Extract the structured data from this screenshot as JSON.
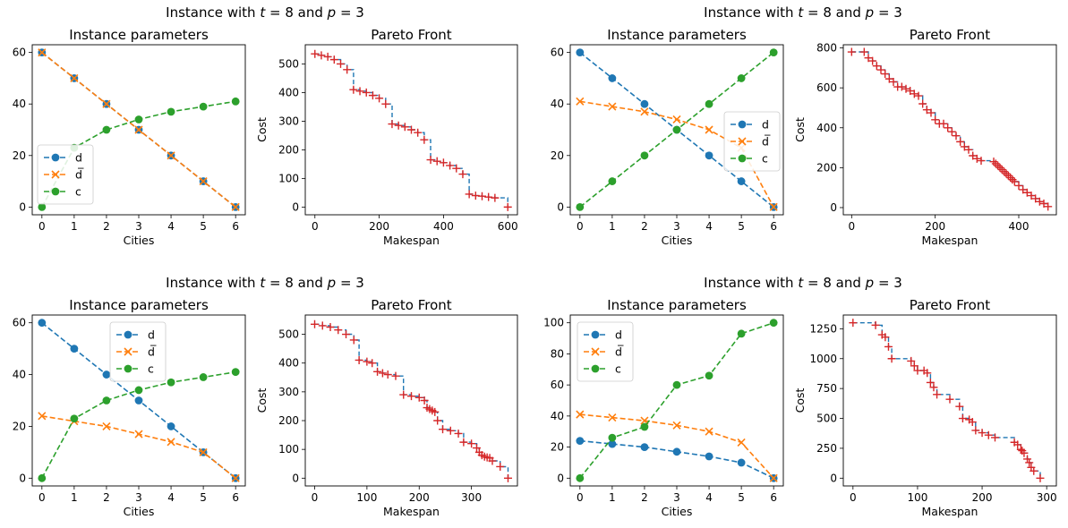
{
  "figure": {
    "suptitles": [
      "Instance with $t=8$ and $p=3$",
      "Instance with $t=8$ and $p=3$",
      "Instance with $t=8$ and $p=3$",
      "Instance with $t=8$ and $p=3$"
    ]
  },
  "colors": {
    "d": "#1f77b4",
    "dbar": "#ff7f0e",
    "c": "#2ca02c",
    "front_marker": "#d62728",
    "front_line": "#1f77b4"
  },
  "chart_data": [
    {
      "type": "line",
      "title": "Instance parameters",
      "xlabel": "Cities",
      "ylabel": "",
      "xlim": [
        -0.3,
        6.3
      ],
      "ylim": [
        -3,
        63
      ],
      "xticks": [
        0,
        1,
        2,
        3,
        4,
        5,
        6
      ],
      "yticks": [
        0,
        20,
        40,
        60
      ],
      "legend_placement": "lower-left",
      "x": [
        0,
        1,
        2,
        3,
        4,
        5,
        6
      ],
      "series": [
        {
          "name": "d",
          "marker": "circle",
          "values": [
            60,
            50,
            40,
            30,
            20,
            10,
            0
          ]
        },
        {
          "name": "d̅",
          "marker": "x",
          "values": [
            60,
            50,
            40,
            30,
            20,
            10,
            0
          ]
        },
        {
          "name": "c",
          "marker": "circle",
          "values": [
            0,
            23,
            30,
            34,
            37,
            39,
            41
          ]
        }
      ]
    },
    {
      "type": "scatter",
      "title": "Pareto Front",
      "xlabel": "Makespan",
      "ylabel": "Cost",
      "xlim": [
        -30,
        630
      ],
      "ylim": [
        -27,
        567
      ],
      "xticks": [
        0,
        200,
        400,
        600
      ],
      "yticks": [
        0,
        100,
        200,
        300,
        400,
        500
      ],
      "points": [
        [
          0,
          535
        ],
        [
          20,
          530
        ],
        [
          40,
          525
        ],
        [
          60,
          515
        ],
        [
          80,
          500
        ],
        [
          100,
          480
        ],
        [
          120,
          410
        ],
        [
          140,
          405
        ],
        [
          160,
          400
        ],
        [
          180,
          390
        ],
        [
          200,
          380
        ],
        [
          220,
          360
        ],
        [
          240,
          290
        ],
        [
          260,
          285
        ],
        [
          280,
          280
        ],
        [
          300,
          270
        ],
        [
          320,
          260
        ],
        [
          340,
          235
        ],
        [
          360,
          165
        ],
        [
          380,
          160
        ],
        [
          400,
          155
        ],
        [
          420,
          145
        ],
        [
          440,
          135
        ],
        [
          460,
          115
        ],
        [
          480,
          45
        ],
        [
          500,
          40
        ],
        [
          520,
          38
        ],
        [
          540,
          35
        ],
        [
          560,
          32
        ],
        [
          600,
          0
        ]
      ]
    },
    {
      "type": "line",
      "title": "Instance parameters",
      "xlabel": "Cities",
      "ylabel": "",
      "xlim": [
        -0.3,
        6.3
      ],
      "ylim": [
        -3,
        63
      ],
      "xticks": [
        0,
        1,
        2,
        3,
        4,
        5,
        6
      ],
      "yticks": [
        0,
        20,
        40,
        60
      ],
      "legend_placement": "center-right",
      "x": [
        0,
        1,
        2,
        3,
        4,
        5,
        6
      ],
      "series": [
        {
          "name": "d",
          "marker": "circle",
          "values": [
            60,
            50,
            40,
            30,
            20,
            10,
            0
          ]
        },
        {
          "name": "d̅",
          "marker": "x",
          "values": [
            41,
            39,
            37,
            34,
            30,
            23,
            0
          ]
        },
        {
          "name": "c",
          "marker": "circle",
          "values": [
            0,
            10,
            20,
            30,
            40,
            50,
            60
          ]
        }
      ]
    },
    {
      "type": "scatter",
      "title": "Pareto Front",
      "xlabel": "Makespan",
      "ylabel": "Cost",
      "xlim": [
        -20,
        490
      ],
      "ylim": [
        -36,
        816
      ],
      "xticks": [
        0,
        200,
        400
      ],
      "yticks": [
        0,
        200,
        400,
        600,
        800
      ],
      "points": [
        [
          0,
          780
        ],
        [
          30,
          780
        ],
        [
          40,
          750
        ],
        [
          50,
          735
        ],
        [
          60,
          710
        ],
        [
          70,
          690
        ],
        [
          80,
          670
        ],
        [
          90,
          645
        ],
        [
          100,
          630
        ],
        [
          110,
          605
        ],
        [
          120,
          605
        ],
        [
          130,
          595
        ],
        [
          140,
          585
        ],
        [
          150,
          570
        ],
        [
          160,
          560
        ],
        [
          170,
          520
        ],
        [
          180,
          490
        ],
        [
          190,
          475
        ],
        [
          200,
          440
        ],
        [
          210,
          420
        ],
        [
          220,
          420
        ],
        [
          230,
          400
        ],
        [
          240,
          380
        ],
        [
          250,
          360
        ],
        [
          260,
          330
        ],
        [
          270,
          305
        ],
        [
          280,
          290
        ],
        [
          290,
          260
        ],
        [
          300,
          245
        ],
        [
          310,
          235
        ],
        [
          340,
          230
        ],
        [
          345,
          220
        ],
        [
          350,
          210
        ],
        [
          355,
          200
        ],
        [
          360,
          190
        ],
        [
          365,
          180
        ],
        [
          370,
          170
        ],
        [
          375,
          160
        ],
        [
          380,
          150
        ],
        [
          385,
          140
        ],
        [
          390,
          130
        ],
        [
          400,
          110
        ],
        [
          410,
          90
        ],
        [
          420,
          75
        ],
        [
          430,
          60
        ],
        [
          440,
          45
        ],
        [
          450,
          30
        ],
        [
          460,
          20
        ],
        [
          470,
          5
        ]
      ]
    },
    {
      "type": "line",
      "title": "Instance parameters",
      "xlabel": "Cities",
      "ylabel": "",
      "xlim": [
        -0.3,
        6.3
      ],
      "ylim": [
        -3,
        63
      ],
      "xticks": [
        0,
        1,
        2,
        3,
        4,
        5,
        6
      ],
      "yticks": [
        0,
        20,
        40,
        60
      ],
      "legend_placement": "top-center",
      "x": [
        0,
        1,
        2,
        3,
        4,
        5,
        6
      ],
      "series": [
        {
          "name": "d",
          "marker": "circle",
          "values": [
            60,
            50,
            40,
            30,
            20,
            10,
            0
          ]
        },
        {
          "name": "d̅",
          "marker": "x",
          "values": [
            24,
            22,
            20,
            17,
            14,
            10,
            0
          ]
        },
        {
          "name": "c",
          "marker": "circle",
          "values": [
            0,
            23,
            30,
            34,
            37,
            39,
            41
          ]
        }
      ]
    },
    {
      "type": "scatter",
      "title": "Pareto Front",
      "xlabel": "Makespan",
      "ylabel": "Cost",
      "xlim": [
        -18,
        388
      ],
      "ylim": [
        -27,
        567
      ],
      "xticks": [
        0,
        100,
        200,
        300
      ],
      "yticks": [
        0,
        100,
        200,
        300,
        400,
        500
      ],
      "points": [
        [
          0,
          535
        ],
        [
          15,
          530
        ],
        [
          30,
          525
        ],
        [
          45,
          515
        ],
        [
          60,
          500
        ],
        [
          75,
          480
        ],
        [
          85,
          410
        ],
        [
          100,
          405
        ],
        [
          110,
          400
        ],
        [
          120,
          370
        ],
        [
          130,
          365
        ],
        [
          140,
          360
        ],
        [
          155,
          355
        ],
        [
          170,
          290
        ],
        [
          185,
          285
        ],
        [
          200,
          280
        ],
        [
          210,
          270
        ],
        [
          215,
          245
        ],
        [
          220,
          240
        ],
        [
          225,
          235
        ],
        [
          230,
          230
        ],
        [
          235,
          200
        ],
        [
          245,
          170
        ],
        [
          260,
          165
        ],
        [
          275,
          155
        ],
        [
          285,
          125
        ],
        [
          300,
          120
        ],
        [
          310,
          105
        ],
        [
          315,
          90
        ],
        [
          320,
          80
        ],
        [
          325,
          75
        ],
        [
          330,
          72
        ],
        [
          335,
          70
        ],
        [
          340,
          60
        ],
        [
          355,
          40
        ],
        [
          370,
          0
        ]
      ]
    },
    {
      "type": "line",
      "title": "Instance parameters",
      "xlabel": "Cities",
      "ylabel": "",
      "xlim": [
        -0.3,
        6.3
      ],
      "ylim": [
        -5,
        105
      ],
      "xticks": [
        0,
        1,
        2,
        3,
        4,
        5,
        6
      ],
      "yticks": [
        0,
        20,
        40,
        60,
        80,
        100
      ],
      "legend_placement": "top-left",
      "x": [
        0,
        1,
        2,
        3,
        4,
        5,
        6
      ],
      "series": [
        {
          "name": "d",
          "marker": "circle",
          "values": [
            24,
            22,
            20,
            17,
            14,
            10,
            0
          ]
        },
        {
          "name": "d̅",
          "marker": "x",
          "values": [
            41,
            39,
            37,
            34,
            30,
            23,
            0
          ]
        },
        {
          "name": "c",
          "marker": "circle",
          "values": [
            0,
            26,
            33,
            60,
            66,
            93,
            100
          ]
        }
      ]
    },
    {
      "type": "scatter",
      "title": "Pareto Front",
      "xlabel": "Makespan",
      "ylabel": "Cost",
      "xlim": [
        -15,
        315
      ],
      "ylim": [
        -65,
        1365
      ],
      "xticks": [
        0,
        100,
        200,
        300
      ],
      "yticks": [
        0,
        250,
        500,
        750,
        1000,
        1250
      ],
      "points": [
        [
          0,
          1300
        ],
        [
          35,
          1280
        ],
        [
          45,
          1200
        ],
        [
          50,
          1180
        ],
        [
          55,
          1100
        ],
        [
          60,
          1000
        ],
        [
          90,
          980
        ],
        [
          95,
          940
        ],
        [
          100,
          900
        ],
        [
          110,
          900
        ],
        [
          115,
          880
        ],
        [
          120,
          800
        ],
        [
          125,
          760
        ],
        [
          130,
          700
        ],
        [
          150,
          660
        ],
        [
          165,
          600
        ],
        [
          170,
          500
        ],
        [
          180,
          490
        ],
        [
          185,
          470
        ],
        [
          190,
          400
        ],
        [
          200,
          380
        ],
        [
          210,
          360
        ],
        [
          220,
          340
        ],
        [
          250,
          300
        ],
        [
          255,
          280
        ],
        [
          260,
          240
        ],
        [
          262,
          230
        ],
        [
          265,
          210
        ],
        [
          270,
          160
        ],
        [
          273,
          130
        ],
        [
          276,
          90
        ],
        [
          280,
          60
        ],
        [
          290,
          0
        ]
      ]
    }
  ]
}
